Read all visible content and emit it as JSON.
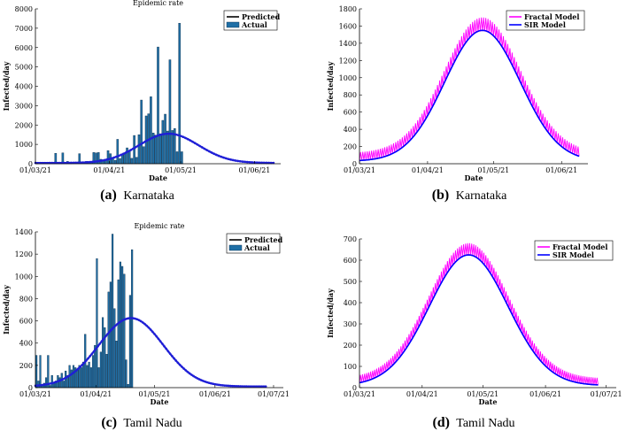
{
  "colors": {
    "predicted": "#1f1fd6",
    "bar": "#1f6fa6",
    "bar_edge": "#0a2c4a",
    "fractal": "#ff00ff",
    "sir": "#0000ff",
    "axis": "#000000"
  },
  "captions": [
    {
      "letter": "(a)",
      "text": "Karnataka"
    },
    {
      "letter": "(b)",
      "text": "Karnataka"
    },
    {
      "letter": "(c)",
      "text": "Tamil Nadu"
    },
    {
      "letter": "(d)",
      "text": "Tamil Nadu"
    }
  ],
  "chart_data": [
    {
      "id": "a",
      "type": "bar",
      "title": "Epidemic rate",
      "xlabel": "Date",
      "ylabel": "Infected/day",
      "ylim": [
        0,
        8000
      ],
      "yticks": [
        0,
        1000,
        2000,
        3000,
        4000,
        5000,
        6000,
        7000,
        8000
      ],
      "xlim": [
        0,
        103
      ],
      "xticks": [
        {
          "v": 0,
          "label": "01/03/21"
        },
        {
          "v": 31,
          "label": "01/04/21"
        },
        {
          "v": 61,
          "label": "01/05/21"
        },
        {
          "v": 92,
          "label": "01/06/21"
        }
      ],
      "legend": {
        "position": "top-right",
        "entries": [
          "Predicted",
          "Actual"
        ]
      },
      "bars": {
        "name": "Actual",
        "x0": 0,
        "values": [
          30,
          40,
          60,
          50,
          30,
          80,
          20,
          40,
          540,
          60,
          80,
          560,
          70,
          120,
          70,
          80,
          50,
          60,
          520,
          60,
          80,
          120,
          70,
          90,
          580,
          560,
          580,
          230,
          140,
          230,
          680,
          520,
          330,
          180,
          1260,
          270,
          460,
          540,
          820,
          680,
          280,
          1460,
          330,
          1500,
          3290,
          880,
          2470,
          2580,
          3460,
          1590,
          1480,
          6030,
          1550,
          2240,
          2560,
          1690,
          5370,
          1720,
          1820,
          620,
          7260,
          620
        ]
      },
      "curves": [
        {
          "name": "Predicted",
          "kind": "gaussian",
          "color_key": "predicted",
          "peak": 1550,
          "center": 56,
          "width": 12.5,
          "base": 40,
          "x_end": 100,
          "style": "dotted-solid"
        }
      ]
    },
    {
      "id": "b",
      "type": "line",
      "xlabel": "Date",
      "ylabel": "Infected/day",
      "ylim": [
        0,
        1800
      ],
      "yticks": [
        0,
        200,
        400,
        600,
        800,
        1000,
        1200,
        1400,
        1600,
        1800
      ],
      "xlim": [
        0,
        104
      ],
      "xticks": [
        {
          "v": 0,
          "label": "01/03/21"
        },
        {
          "v": 31,
          "label": "01/04/21"
        },
        {
          "v": 61,
          "label": "01/05/21"
        },
        {
          "v": 92,
          "label": "01/06/21"
        }
      ],
      "legend": {
        "position": "top-right",
        "entries": [
          "Fractal Model",
          "SIR Model"
        ]
      },
      "curves": [
        {
          "name": "SIR Model",
          "kind": "gaussian",
          "color_key": "sir",
          "peak": 1550,
          "center": 56,
          "width": 17.2,
          "base": 30,
          "x_start": 0,
          "x_end": 100
        },
        {
          "name": "Fractal Model",
          "kind": "fractal",
          "color_key": "fractal",
          "peak": 1700,
          "center": 56,
          "width": 17.2,
          "base": 30,
          "amp": 160,
          "x_start": 0,
          "x_end": 100
        }
      ]
    },
    {
      "id": "c",
      "type": "bar",
      "title": "Epidemic rate",
      "xlabel": "Date",
      "ylabel": "Infected/day",
      "ylim": [
        0,
        1400
      ],
      "yticks": [
        0,
        200,
        400,
        600,
        800,
        1000,
        1200,
        1400
      ],
      "xlim": [
        0,
        127
      ],
      "xticks": [
        {
          "v": 0,
          "label": "01/03/21"
        },
        {
          "v": 31,
          "label": "01/04/21"
        },
        {
          "v": 61,
          "label": "01/05/21"
        },
        {
          "v": 92,
          "label": "01/06/21"
        },
        {
          "v": 122,
          "label": "01/07/21"
        }
      ],
      "legend": {
        "position": "top-right",
        "entries": [
          "Predicted",
          "Actual"
        ]
      },
      "bars": {
        "name": "Actual",
        "x0": 0,
        "values": [
          290,
          60,
          290,
          20,
          40,
          90,
          290,
          20,
          110,
          40,
          60,
          110,
          90,
          130,
          60,
          150,
          110,
          200,
          160,
          200,
          180,
          170,
          200,
          180,
          230,
          480,
          200,
          230,
          180,
          290,
          380,
          1160,
          180,
          320,
          630,
          540,
          300,
          860,
          950,
          1380,
          710,
          420,
          970,
          1130,
          1090,
          1020,
          250,
          30,
          830,
          1240
        ]
      },
      "curves": [
        {
          "name": "Predicted",
          "kind": "gaussian",
          "color_key": "predicted",
          "peak": 625,
          "center": 49,
          "width": 16.5,
          "base": 10,
          "x_end": 118,
          "style": "dotted-solid"
        }
      ]
    },
    {
      "id": "d",
      "type": "line",
      "xlabel": "Date",
      "ylabel": "Infected/day",
      "ylim": [
        0,
        700
      ],
      "yticks": [
        0,
        100,
        200,
        300,
        400,
        500,
        600,
        700
      ],
      "xlim": [
        0,
        127
      ],
      "xticks": [
        {
          "v": 0,
          "label": "01/03/21"
        },
        {
          "v": 31,
          "label": "01/04/21"
        },
        {
          "v": 61,
          "label": "01/05/21"
        },
        {
          "v": 92,
          "label": "01/06/21"
        },
        {
          "v": 122,
          "label": "01/07/21"
        }
      ],
      "legend": {
        "position": "top-right",
        "entries": [
          "Fractal Model",
          "SIR Model"
        ]
      },
      "curves": [
        {
          "name": "SIR Model",
          "kind": "gaussian",
          "color_key": "sir",
          "peak": 625,
          "center": 54,
          "width": 19.5,
          "base": 10,
          "x_start": 0,
          "x_end": 118
        },
        {
          "name": "Fractal Model",
          "kind": "fractal",
          "color_key": "fractal",
          "peak": 680,
          "center": 54,
          "width": 19.5,
          "base": 10,
          "amp": 55,
          "x_start": 0,
          "x_end": 118
        }
      ]
    }
  ]
}
